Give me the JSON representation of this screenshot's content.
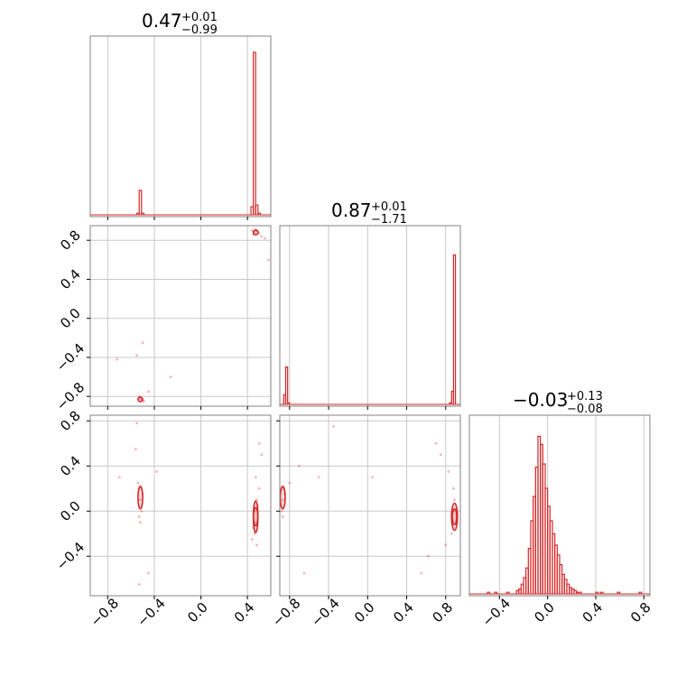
{
  "figure": {
    "colors": {
      "series": "#d62728",
      "grid": "#c8c8c8",
      "frame": "#808080"
    }
  },
  "chart_data": [
    {
      "type": "histogram",
      "title": {
        "value": "0.47",
        "plus": "+0.01",
        "minus": "−0.99"
      },
      "xlim": [
        -0.95,
        0.6
      ],
      "grid": true,
      "bins": [
        {
          "x": -0.55,
          "v": 0.01
        },
        {
          "x": -0.53,
          "v": 0.15
        },
        {
          "x": -0.51,
          "v": 0.01
        },
        {
          "x": 0.43,
          "v": 0.05
        },
        {
          "x": 0.45,
          "v": 1.0
        },
        {
          "x": 0.47,
          "v": 0.06
        },
        {
          "x": 0.49,
          "v": 0.01
        }
      ],
      "bin_width": 0.02
    },
    {
      "type": "scatter",
      "xlim": [
        -0.95,
        0.6
      ],
      "ylim": [
        -0.9,
        0.95
      ],
      "grid": true,
      "yticks": [
        "0.8",
        "0.4",
        "0.0",
        "−0.4",
        "−0.8"
      ],
      "ytick_values": [
        0.8,
        0.4,
        0.0,
        -0.4,
        -0.8
      ],
      "points": [
        [
          0.46,
          0.88
        ],
        [
          0.48,
          0.9
        ],
        [
          0.45,
          0.86
        ],
        [
          0.5,
          0.87
        ],
        [
          0.47,
          0.91
        ],
        [
          0.52,
          0.84
        ],
        [
          0.55,
          0.82
        ],
        [
          0.49,
          0.89
        ],
        [
          0.44,
          0.9
        ],
        [
          0.58,
          0.6
        ],
        [
          -0.52,
          -0.82
        ],
        [
          -0.5,
          -0.84
        ],
        [
          -0.53,
          -0.8
        ],
        [
          -0.51,
          -0.83
        ],
        [
          -0.49,
          -0.85
        ],
        [
          -0.55,
          -0.38
        ],
        [
          -0.5,
          -0.25
        ],
        [
          -0.72,
          -0.42
        ],
        [
          -0.26,
          -0.6
        ],
        [
          -0.45,
          -0.75
        ]
      ],
      "contours": [
        {
          "cx": 0.47,
          "cy": 0.88,
          "rx": 0.02,
          "ry": 0.02
        },
        {
          "cx": -0.52,
          "cy": -0.83,
          "rx": 0.02,
          "ry": 0.02
        }
      ]
    },
    {
      "type": "histogram",
      "title": {
        "value": "0.87",
        "plus": "+0.01",
        "minus": "−1.71"
      },
      "xlim": [
        -0.9,
        0.95
      ],
      "grid": true,
      "bins": [
        {
          "x": -0.86,
          "v": 0.06
        },
        {
          "x": -0.84,
          "v": 0.23
        },
        {
          "x": -0.82,
          "v": 0.01
        },
        {
          "x": 0.84,
          "v": 0.01
        },
        {
          "x": 0.86,
          "v": 0.08
        },
        {
          "x": 0.88,
          "v": 0.92
        }
      ],
      "bin_width": 0.02
    },
    {
      "type": "scatter",
      "xlim": [
        -0.95,
        0.6
      ],
      "ylim": [
        -0.75,
        0.85
      ],
      "grid": true,
      "xticks": [
        "−0.8",
        "−0.4",
        "0.0",
        "0.4"
      ],
      "xtick_values": [
        -0.8,
        -0.4,
        0.0,
        0.4
      ],
      "yticks": [
        "0.8",
        "0.4",
        "0.0",
        "−0.4"
      ],
      "ytick_values": [
        0.8,
        0.4,
        0.0,
        -0.4
      ],
      "points": [
        [
          -0.52,
          0.1
        ],
        [
          -0.53,
          0.2
        ],
        [
          -0.51,
          0.0
        ],
        [
          -0.52,
          -0.1
        ],
        [
          -0.54,
          0.25
        ],
        [
          -0.5,
          0.15
        ],
        [
          -0.53,
          -0.05
        ],
        [
          -0.55,
          0.78
        ],
        [
          -0.56,
          0.55
        ],
        [
          -0.7,
          0.3
        ],
        [
          -0.45,
          -0.55
        ],
        [
          -0.53,
          -0.65
        ],
        [
          -0.38,
          0.35
        ],
        [
          0.46,
          0.0
        ],
        [
          0.47,
          -0.1
        ],
        [
          0.48,
          0.1
        ],
        [
          0.46,
          -0.2
        ],
        [
          0.49,
          0.05
        ],
        [
          0.45,
          -0.15
        ],
        [
          0.5,
          0.2
        ],
        [
          0.47,
          0.3
        ],
        [
          0.48,
          -0.3
        ],
        [
          0.5,
          0.6
        ],
        [
          0.52,
          0.5
        ],
        [
          0.44,
          -0.25
        ]
      ],
      "contours": [
        {
          "cx": -0.52,
          "cy": 0.12,
          "rx": 0.02,
          "ry": 0.1
        },
        {
          "cx": 0.47,
          "cy": -0.05,
          "rx": 0.02,
          "ry": 0.14
        },
        {
          "cx": 0.47,
          "cy": -0.05,
          "rx": 0.012,
          "ry": 0.08
        }
      ]
    },
    {
      "type": "scatter",
      "xlim": [
        -0.9,
        0.95
      ],
      "ylim": [
        -0.75,
        0.85
      ],
      "grid": true,
      "xticks": [
        "−0.8",
        "−0.4",
        "0.0",
        "0.4",
        "0.8"
      ],
      "xtick_values": [
        -0.8,
        -0.4,
        0.0,
        0.4,
        0.8
      ],
      "points": [
        [
          -0.87,
          0.1
        ],
        [
          -0.86,
          0.2
        ],
        [
          -0.88,
          0.0
        ],
        [
          -0.87,
          -0.05
        ],
        [
          -0.85,
          0.15
        ],
        [
          -0.8,
          0.25
        ],
        [
          -0.65,
          -0.55
        ],
        [
          -0.7,
          0.4
        ],
        [
          -0.5,
          0.3
        ],
        [
          -0.35,
          0.75
        ],
        [
          0.05,
          0.3
        ],
        [
          0.88,
          0.0
        ],
        [
          0.87,
          -0.1
        ],
        [
          0.89,
          0.1
        ],
        [
          0.86,
          -0.2
        ],
        [
          0.88,
          0.2
        ],
        [
          0.75,
          0.5
        ],
        [
          0.7,
          0.6
        ],
        [
          0.55,
          -0.55
        ],
        [
          0.62,
          -0.4
        ],
        [
          0.8,
          -0.3
        ],
        [
          0.83,
          0.35
        ]
      ],
      "contours": [
        {
          "cx": -0.87,
          "cy": 0.12,
          "rx": 0.025,
          "ry": 0.1
        },
        {
          "cx": 0.89,
          "cy": -0.05,
          "rx": 0.03,
          "ry": 0.12
        },
        {
          "cx": 0.89,
          "cy": -0.05,
          "rx": 0.018,
          "ry": 0.07
        }
      ]
    },
    {
      "type": "histogram",
      "title": {
        "value": "−0.03",
        "plus": "+0.13",
        "minus": "−0.08"
      },
      "xlim": [
        -0.65,
        0.85
      ],
      "grid": true,
      "xticks": [
        "−0.4",
        "0.0",
        "0.4",
        "0.8"
      ],
      "xtick_values": [
        -0.4,
        0.0,
        0.4,
        0.8
      ],
      "bin_width": 0.02,
      "bins": [
        {
          "x": -0.5,
          "v": 0.01
        },
        {
          "x": -0.44,
          "v": 0.01
        },
        {
          "x": -0.34,
          "v": 0.01
        },
        {
          "x": -0.26,
          "v": 0.02
        },
        {
          "x": -0.24,
          "v": 0.03
        },
        {
          "x": -0.22,
          "v": 0.06
        },
        {
          "x": -0.2,
          "v": 0.1
        },
        {
          "x": -0.18,
          "v": 0.16
        },
        {
          "x": -0.16,
          "v": 0.28
        },
        {
          "x": -0.14,
          "v": 0.45
        },
        {
          "x": -0.12,
          "v": 0.6
        },
        {
          "x": -0.1,
          "v": 0.78
        },
        {
          "x": -0.08,
          "v": 0.97
        },
        {
          "x": -0.06,
          "v": 0.92
        },
        {
          "x": -0.04,
          "v": 0.8
        },
        {
          "x": -0.02,
          "v": 0.65
        },
        {
          "x": 0.0,
          "v": 0.54
        },
        {
          "x": 0.02,
          "v": 0.45
        },
        {
          "x": 0.04,
          "v": 0.37
        },
        {
          "x": 0.06,
          "v": 0.3
        },
        {
          "x": 0.08,
          "v": 0.24
        },
        {
          "x": 0.1,
          "v": 0.18
        },
        {
          "x": 0.12,
          "v": 0.12
        },
        {
          "x": 0.14,
          "v": 0.09
        },
        {
          "x": 0.16,
          "v": 0.06
        },
        {
          "x": 0.18,
          "v": 0.04
        },
        {
          "x": 0.2,
          "v": 0.03
        },
        {
          "x": 0.22,
          "v": 0.02
        },
        {
          "x": 0.24,
          "v": 0.01
        },
        {
          "x": 0.26,
          "v": 0.01
        },
        {
          "x": 0.4,
          "v": 0.01
        },
        {
          "x": 0.44,
          "v": 0.01
        },
        {
          "x": 0.58,
          "v": 0.01
        },
        {
          "x": 0.76,
          "v": 0.01
        }
      ]
    }
  ]
}
